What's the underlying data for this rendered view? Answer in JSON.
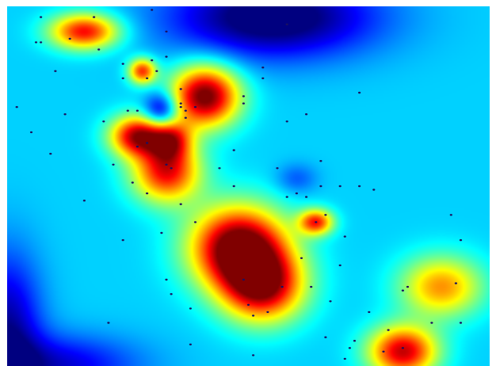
{
  "chart_data": {
    "type": "heatmap",
    "title": "",
    "xlabel": "",
    "ylabel": "",
    "colormap": "jet",
    "grid": false,
    "legend": "none",
    "x_range": [
      0,
      1
    ],
    "y_range": [
      0,
      1
    ],
    "background_value": 0.33,
    "colors": {
      "low": "#00008f",
      "mid_low": "#0080ff",
      "mid": "#00e5ff",
      "mid_high": "#ffff00",
      "high": "#ff2000",
      "max": "#8a0000"
    },
    "hotspots": [
      {
        "x": 0.41,
        "y": 0.75,
        "sx": 0.05,
        "sy": 0.06,
        "v": 0.7
      },
      {
        "x": 0.27,
        "y": 0.64,
        "sx": 0.04,
        "sy": 0.04,
        "v": 0.6
      },
      {
        "x": 0.16,
        "y": 0.93,
        "sx": 0.05,
        "sy": 0.035,
        "v": 0.55
      },
      {
        "x": 0.28,
        "y": 0.82,
        "sx": 0.02,
        "sy": 0.025,
        "v": 0.5
      },
      {
        "x": 0.33,
        "y": 0.54,
        "sx": 0.05,
        "sy": 0.06,
        "v": 0.55
      },
      {
        "x": 0.48,
        "y": 0.33,
        "sx": 0.07,
        "sy": 0.08,
        "v": 0.75
      },
      {
        "x": 0.53,
        "y": 0.22,
        "sx": 0.06,
        "sy": 0.07,
        "v": 0.6
      },
      {
        "x": 0.64,
        "y": 0.4,
        "sx": 0.025,
        "sy": 0.025,
        "v": 0.5
      },
      {
        "x": 0.82,
        "y": 0.04,
        "sx": 0.05,
        "sy": 0.05,
        "v": 0.6
      },
      {
        "x": 0.9,
        "y": 0.22,
        "sx": 0.06,
        "sy": 0.06,
        "v": 0.4
      },
      {
        "x": 0.34,
        "y": 0.63,
        "sx": 0.03,
        "sy": 0.04,
        "v": 0.4
      }
    ],
    "coldspots": [
      {
        "x": 0.55,
        "y": 0.97,
        "sx": 0.15,
        "sy": 0.08,
        "v": -0.4
      },
      {
        "x": 0.32,
        "y": 0.71,
        "sx": 0.025,
        "sy": 0.035,
        "v": -0.35
      },
      {
        "x": 0.0,
        "y": 0.1,
        "sx": 0.05,
        "sy": 0.15,
        "v": -0.3
      },
      {
        "x": 0.1,
        "y": 0.0,
        "sx": 0.12,
        "sy": 0.06,
        "v": -0.25
      },
      {
        "x": 0.6,
        "y": 0.52,
        "sx": 0.03,
        "sy": 0.03,
        "v": -0.12
      }
    ],
    "points": [
      {
        "x": 0.07,
        "y": 0.97
      },
      {
        "x": 0.18,
        "y": 0.97
      },
      {
        "x": 0.07,
        "y": 0.9
      },
      {
        "x": 0.19,
        "y": 0.88
      },
      {
        "x": 0.24,
        "y": 0.84
      },
      {
        "x": 0.3,
        "y": 0.85
      },
      {
        "x": 0.33,
        "y": 0.86
      },
      {
        "x": 0.29,
        "y": 0.8
      },
      {
        "x": 0.36,
        "y": 0.77
      },
      {
        "x": 0.39,
        "y": 0.72
      },
      {
        "x": 0.37,
        "y": 0.71
      },
      {
        "x": 0.49,
        "y": 0.75
      },
      {
        "x": 0.53,
        "y": 0.83
      },
      {
        "x": 0.1,
        "y": 0.82
      },
      {
        "x": 0.2,
        "y": 0.68
      },
      {
        "x": 0.29,
        "y": 0.62
      },
      {
        "x": 0.33,
        "y": 0.56
      },
      {
        "x": 0.27,
        "y": 0.61
      },
      {
        "x": 0.26,
        "y": 0.51
      },
      {
        "x": 0.34,
        "y": 0.55
      },
      {
        "x": 0.44,
        "y": 0.55
      },
      {
        "x": 0.47,
        "y": 0.5
      },
      {
        "x": 0.39,
        "y": 0.4
      },
      {
        "x": 0.32,
        "y": 0.37
      },
      {
        "x": 0.36,
        "y": 0.45
      },
      {
        "x": 0.29,
        "y": 0.48
      },
      {
        "x": 0.47,
        "y": 0.6
      },
      {
        "x": 0.49,
        "y": 0.73
      },
      {
        "x": 0.64,
        "y": 0.4
      },
      {
        "x": 0.7,
        "y": 0.36
      },
      {
        "x": 0.65,
        "y": 0.5
      },
      {
        "x": 0.56,
        "y": 0.55
      },
      {
        "x": 0.58,
        "y": 0.47
      },
      {
        "x": 0.62,
        "y": 0.47
      },
      {
        "x": 0.66,
        "y": 0.42
      },
      {
        "x": 0.69,
        "y": 0.5
      },
      {
        "x": 0.76,
        "y": 0.49
      },
      {
        "x": 0.83,
        "y": 0.22
      },
      {
        "x": 0.92,
        "y": 0.42
      },
      {
        "x": 0.94,
        "y": 0.35
      },
      {
        "x": 0.94,
        "y": 0.12
      },
      {
        "x": 0.75,
        "y": 0.15
      },
      {
        "x": 0.67,
        "y": 0.18
      },
      {
        "x": 0.88,
        "y": 0.12
      },
      {
        "x": 0.71,
        "y": 0.05
      },
      {
        "x": 0.82,
        "y": 0.05
      },
      {
        "x": 0.78,
        "y": 0.04
      },
      {
        "x": 0.72,
        "y": 0.07
      },
      {
        "x": 0.51,
        "y": 0.14
      },
      {
        "x": 0.5,
        "y": 0.17
      },
      {
        "x": 0.57,
        "y": 0.22
      },
      {
        "x": 0.61,
        "y": 0.3
      },
      {
        "x": 0.63,
        "y": 0.22
      },
      {
        "x": 0.69,
        "y": 0.28
      },
      {
        "x": 0.73,
        "y": 0.76
      },
      {
        "x": 0.65,
        "y": 0.57
      },
      {
        "x": 0.62,
        "y": 0.7
      },
      {
        "x": 0.58,
        "y": 0.68
      },
      {
        "x": 0.53,
        "y": 0.8
      },
      {
        "x": 0.36,
        "y": 0.73
      },
      {
        "x": 0.25,
        "y": 0.71
      },
      {
        "x": 0.22,
        "y": 0.56
      },
      {
        "x": 0.24,
        "y": 0.35
      },
      {
        "x": 0.16,
        "y": 0.46
      },
      {
        "x": 0.12,
        "y": 0.7
      },
      {
        "x": 0.09,
        "y": 0.59
      },
      {
        "x": 0.05,
        "y": 0.65
      },
      {
        "x": 0.02,
        "y": 0.72
      },
      {
        "x": 0.06,
        "y": 0.9
      },
      {
        "x": 0.24,
        "y": 0.8
      },
      {
        "x": 0.31,
        "y": 0.82
      },
      {
        "x": 0.33,
        "y": 0.93
      },
      {
        "x": 0.27,
        "y": 0.71
      },
      {
        "x": 0.37,
        "y": 0.69
      },
      {
        "x": 0.36,
        "y": 0.72
      },
      {
        "x": 0.49,
        "y": 0.24
      },
      {
        "x": 0.38,
        "y": 0.06
      },
      {
        "x": 0.51,
        "y": 0.03
      },
      {
        "x": 0.54,
        "y": 0.15
      },
      {
        "x": 0.38,
        "y": 0.16
      },
      {
        "x": 0.33,
        "y": 0.24
      },
      {
        "x": 0.21,
        "y": 0.12
      },
      {
        "x": 0.34,
        "y": 0.2
      },
      {
        "x": 0.93,
        "y": 0.23
      },
      {
        "x": 0.82,
        "y": 0.21
      },
      {
        "x": 0.79,
        "y": 0.1
      },
      {
        "x": 0.7,
        "y": 0.02
      },
      {
        "x": 0.3,
        "y": 0.99
      },
      {
        "x": 0.13,
        "y": 0.91
      },
      {
        "x": 0.58,
        "y": 0.95
      },
      {
        "x": 0.66,
        "y": 0.08
      },
      {
        "x": 0.73,
        "y": 0.5
      },
      {
        "x": 0.6,
        "y": 0.48
      }
    ]
  }
}
